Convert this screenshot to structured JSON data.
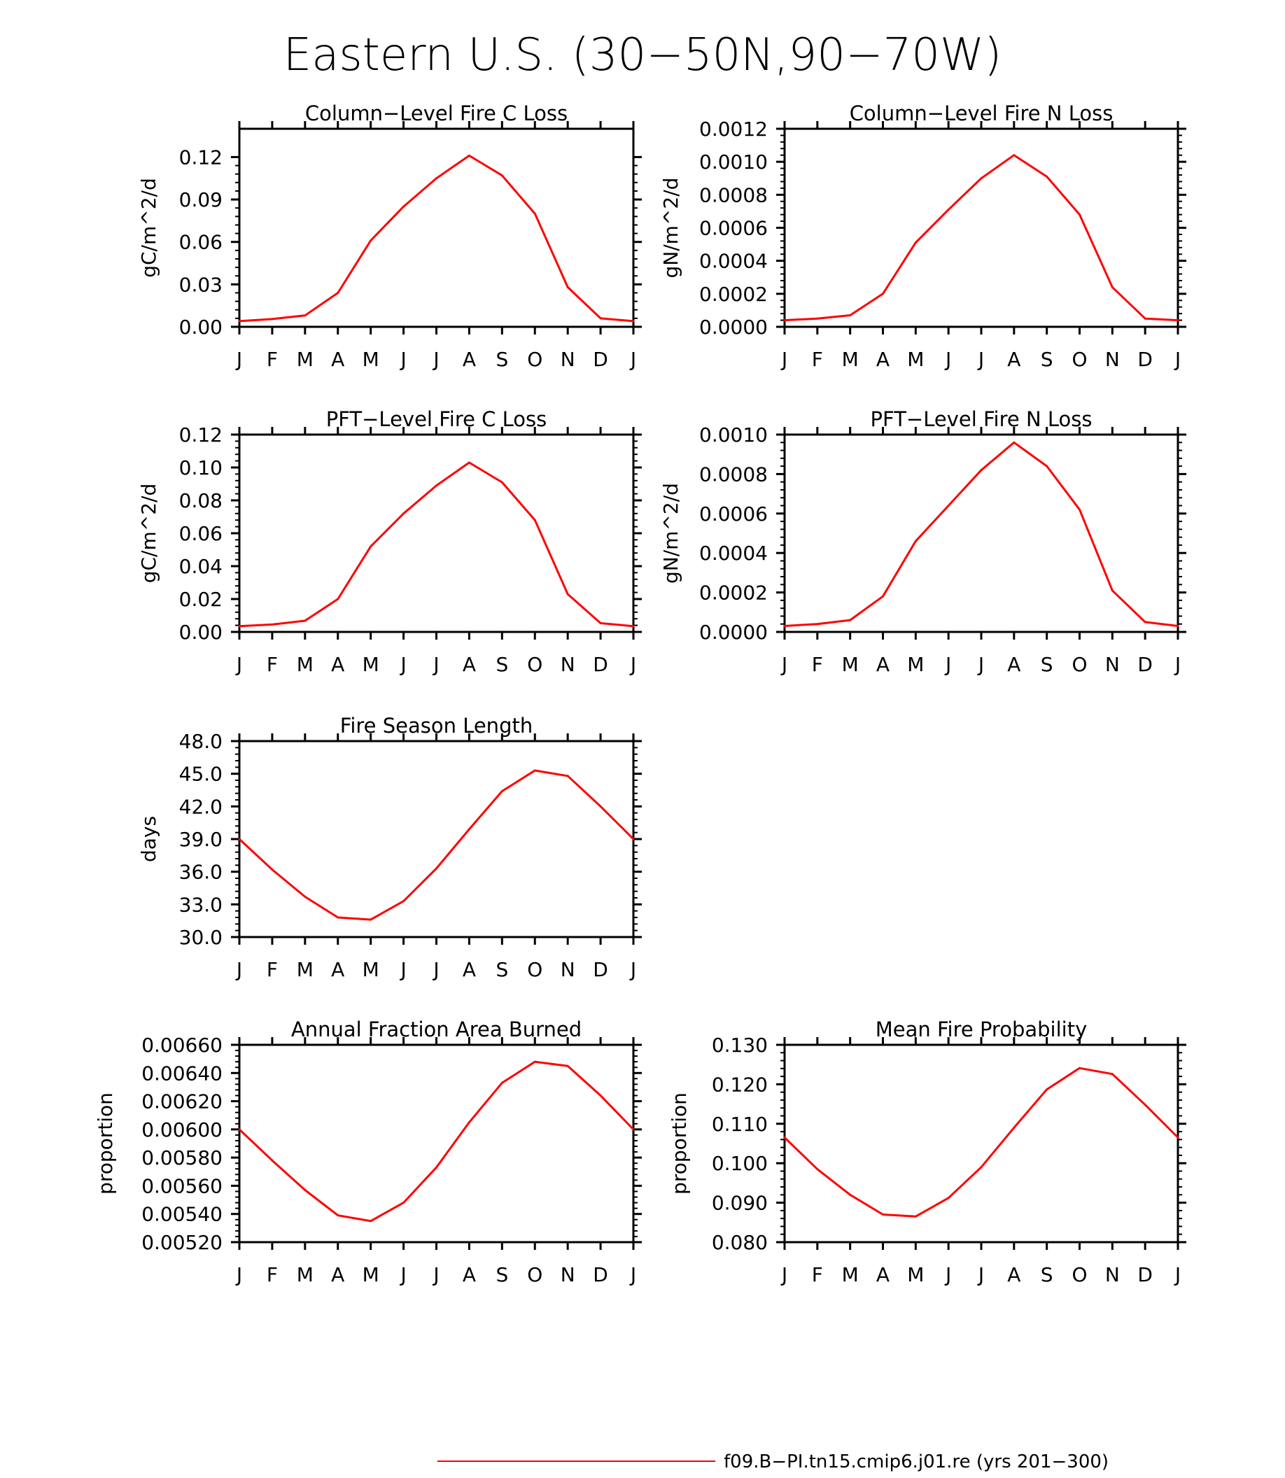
{
  "title": "Eastern U.S. (30−50N,90−70W)",
  "legend": {
    "label": "f09.B−PI.tn15.cmip6.j01.re (yrs 201−300)",
    "color": "#ff0000",
    "placement": "bottom-center"
  },
  "chart_data": [
    {
      "id": "col_c",
      "type": "line",
      "title": "Column−Level Fire C Loss",
      "ylabel": "gC/m^2/d",
      "categories": [
        "J",
        "F",
        "M",
        "A",
        "M",
        "J",
        "J",
        "A",
        "S",
        "O",
        "N",
        "D",
        "J"
      ],
      "ylim": [
        0,
        0.14
      ],
      "yticks": [
        0,
        0.03,
        0.06,
        0.09,
        0.12
      ],
      "ytick_labels": [
        "0.00",
        "0.03",
        "0.06",
        "0.09",
        "0.12"
      ],
      "series": [
        {
          "values": [
            0.004,
            0.0055,
            0.008,
            0.024,
            0.061,
            0.085,
            0.105,
            0.121,
            0.107,
            0.08,
            0.028,
            0.006,
            0.004
          ],
          "color": "#ff0000"
        }
      ],
      "grid": false
    },
    {
      "id": "col_n",
      "type": "line",
      "title": "Column−Level Fire N Loss",
      "ylabel": "gN/m^2/d",
      "categories": [
        "J",
        "F",
        "M",
        "A",
        "M",
        "J",
        "J",
        "A",
        "S",
        "O",
        "N",
        "D",
        "J"
      ],
      "ylim": [
        0,
        0.0012
      ],
      "yticks": [
        0,
        0.0002,
        0.0004,
        0.0006,
        0.0008,
        0.001,
        0.0012
      ],
      "ytick_labels": [
        "0.0000",
        "0.0002",
        "0.0004",
        "0.0006",
        "0.0008",
        "0.0010",
        "0.0012"
      ],
      "series": [
        {
          "values": [
            4e-05,
            5e-05,
            7e-05,
            0.0002,
            0.00051,
            0.00071,
            0.0009,
            0.00104,
            0.00091,
            0.00068,
            0.00024,
            5e-05,
            4e-05
          ],
          "color": "#ff0000"
        }
      ],
      "grid": false
    },
    {
      "id": "pft_c",
      "type": "line",
      "title": "PFT−Level Fire C Loss",
      "ylabel": "gC/m^2/d",
      "categories": [
        "J",
        "F",
        "M",
        "A",
        "M",
        "J",
        "J",
        "A",
        "S",
        "O",
        "N",
        "D",
        "J"
      ],
      "ylim": [
        0,
        0.12
      ],
      "yticks": [
        0,
        0.02,
        0.04,
        0.06,
        0.08,
        0.1,
        0.12
      ],
      "ytick_labels": [
        "0.00",
        "0.02",
        "0.04",
        "0.06",
        "0.08",
        "0.10",
        "0.12"
      ],
      "series": [
        {
          "values": [
            0.0035,
            0.0045,
            0.0068,
            0.02,
            0.052,
            0.072,
            0.089,
            0.103,
            0.091,
            0.068,
            0.023,
            0.0053,
            0.0035
          ],
          "color": "#ff0000"
        }
      ],
      "grid": false
    },
    {
      "id": "pft_n",
      "type": "line",
      "title": "PFT−Level Fire N Loss",
      "ylabel": "gN/m^2/d",
      "categories": [
        "J",
        "F",
        "M",
        "A",
        "M",
        "J",
        "J",
        "A",
        "S",
        "O",
        "N",
        "D",
        "J"
      ],
      "ylim": [
        0,
        0.001
      ],
      "yticks": [
        0,
        0.0002,
        0.0004,
        0.0006,
        0.0008,
        0.001
      ],
      "ytick_labels": [
        "0.0000",
        "0.0002",
        "0.0004",
        "0.0006",
        "0.0008",
        "0.0010"
      ],
      "series": [
        {
          "values": [
            3e-05,
            4e-05,
            6e-05,
            0.00018,
            0.00046,
            0.00064,
            0.00082,
            0.00096,
            0.00084,
            0.00062,
            0.00021,
            5e-05,
            3e-05
          ],
          "color": "#ff0000"
        }
      ],
      "grid": false
    },
    {
      "id": "season",
      "type": "line",
      "title": "Fire Season Length",
      "ylabel": "days",
      "categories": [
        "J",
        "F",
        "M",
        "A",
        "M",
        "J",
        "J",
        "A",
        "S",
        "O",
        "N",
        "D",
        "J"
      ],
      "ylim": [
        30,
        48
      ],
      "yticks": [
        30,
        33,
        36,
        39,
        42,
        45,
        48
      ],
      "ytick_labels": [
        "30.0",
        "33.0",
        "36.0",
        "39.0",
        "42.0",
        "45.0",
        "48.0"
      ],
      "series": [
        {
          "values": [
            39.0,
            36.2,
            33.7,
            31.8,
            31.6,
            33.3,
            36.3,
            39.9,
            43.4,
            45.3,
            44.8,
            42.0,
            39.0
          ],
          "color": "#ff0000"
        }
      ],
      "grid": false
    },
    {
      "id": "area",
      "type": "line",
      "title": "Annual Fraction Area Burned",
      "ylabel": "proportion",
      "categories": [
        "J",
        "F",
        "M",
        "A",
        "M",
        "J",
        "J",
        "A",
        "S",
        "O",
        "N",
        "D",
        "J"
      ],
      "ylim": [
        0.0052,
        0.0066
      ],
      "yticks": [
        0.0052,
        0.0054,
        0.0056,
        0.0058,
        0.006,
        0.0062,
        0.0064,
        0.0066
      ],
      "ytick_labels": [
        "0.00520",
        "0.00540",
        "0.00560",
        "0.00580",
        "0.00600",
        "0.00620",
        "0.00640",
        "0.00660"
      ],
      "series": [
        {
          "values": [
            0.006,
            0.00578,
            0.00557,
            0.00539,
            0.00535,
            0.00548,
            0.00573,
            0.00605,
            0.00633,
            0.00648,
            0.00645,
            0.00624,
            0.006
          ],
          "color": "#ff0000"
        }
      ],
      "grid": false
    },
    {
      "id": "prob",
      "type": "line",
      "title": "Mean Fire Probability",
      "ylabel": "proportion",
      "categories": [
        "J",
        "F",
        "M",
        "A",
        "M",
        "J",
        "J",
        "A",
        "S",
        "O",
        "N",
        "D",
        "J"
      ],
      "ylim": [
        0.08,
        0.13
      ],
      "yticks": [
        0.08,
        0.09,
        0.1,
        0.11,
        0.12,
        0.13
      ],
      "ytick_labels": [
        "0.080",
        "0.090",
        "0.100",
        "0.110",
        "0.120",
        "0.130"
      ],
      "series": [
        {
          "values": [
            0.1065,
            0.0985,
            0.092,
            0.087,
            0.0865,
            0.0912,
            0.099,
            0.109,
            0.1187,
            0.1241,
            0.1226,
            0.1148,
            0.1065
          ],
          "color": "#ff0000"
        }
      ],
      "grid": false
    }
  ]
}
